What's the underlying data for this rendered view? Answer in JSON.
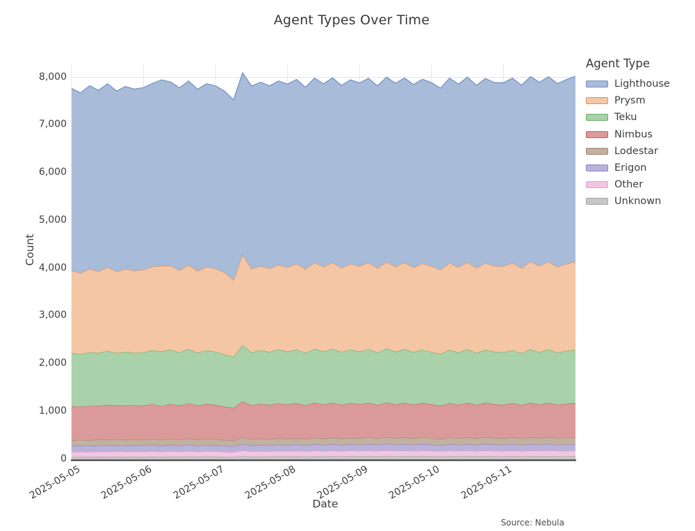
{
  "title": "Agent Types Over Time",
  "source_note": "Source: Nebula",
  "legend": {
    "title": "Agent Type"
  },
  "chart_data": {
    "type": "area",
    "stacked": true,
    "title": "Agent Types Over Time",
    "xlabel": "Date",
    "ylabel": "Count",
    "legend_title": "Agent Type",
    "legend_position": "right-outside",
    "grid": true,
    "x_start": "2025-05-05",
    "x_end": "2025-05-12",
    "points_per_day": 8,
    "x_tick_labels": [
      "2025-05-05",
      "2025-05-06",
      "2025-05-07",
      "2025-05-08",
      "2025-05-09",
      "2025-05-10",
      "2025-05-11"
    ],
    "y_ticks": [
      0,
      1000,
      2000,
      3000,
      4000,
      5000,
      6000,
      7000,
      8000
    ],
    "ylim": [
      0,
      8265
    ],
    "colors": {
      "gridline": "#e4e4e4",
      "axis_line": "#4f4f4f",
      "text": "#3d3d3d"
    },
    "stack_order_bottom_to_top": [
      "Unknown",
      "Other",
      "Erigon",
      "Lodestar",
      "Nimbus",
      "Teku",
      "Prysm",
      "Lighthouse"
    ],
    "series": [
      {
        "name": "Lighthouse",
        "fill": "#a8bbd8",
        "line": "#6f8fbf",
        "values": [
          3822,
          3780,
          3836,
          3798,
          3846,
          3790,
          3828,
          3806,
          3818,
          3840,
          3900,
          3852,
          3824,
          3856,
          3810,
          3838,
          3830,
          3800,
          3776,
          3810,
          3836,
          3852,
          3834,
          3856,
          3840,
          3862,
          3816,
          3868,
          3838,
          3870,
          3826,
          3858,
          3844,
          3866,
          3822,
          3872,
          3846,
          3868,
          3832,
          3860,
          3848,
          3812,
          3874,
          3840,
          3878,
          3830,
          3866,
          3846,
          3850,
          3872,
          3836,
          3880,
          3852,
          3876,
          3842,
          3864,
          3886
        ]
      },
      {
        "name": "Prysm",
        "fill": "#f5c6a4",
        "line": "#e28e5e",
        "values": [
          1726,
          1698,
          1744,
          1712,
          1752,
          1706,
          1736,
          1718,
          1730,
          1752,
          1790,
          1758,
          1724,
          1762,
          1716,
          1748,
          1742,
          1720,
          1608,
          1900,
          1748,
          1764,
          1746,
          1772,
          1768,
          1796,
          1752,
          1806,
          1772,
          1810,
          1762,
          1794,
          1786,
          1812,
          1768,
          1818,
          1784,
          1814,
          1776,
          1806,
          1798,
          1760,
          1824,
          1786,
          1830,
          1778,
          1820,
          1796,
          1804,
          1830,
          1782,
          1836,
          1806,
          1840,
          1796,
          1824,
          1852
        ]
      },
      {
        "name": "Teku",
        "fill": "#a9d2ab",
        "line": "#67aa69",
        "values": [
          1118,
          1096,
          1128,
          1104,
          1134,
          1100,
          1122,
          1108,
          1114,
          1130,
          1150,
          1136,
          1110,
          1138,
          1106,
          1126,
          1112,
          1094,
          1068,
          1178,
          1108,
          1124,
          1110,
          1130,
          1109,
          1126,
          1100,
          1132,
          1112,
          1128,
          1104,
          1122,
          1106,
          1120,
          1098,
          1126,
          1102,
          1122,
          1100,
          1118,
          1096,
          1082,
          1112,
          1094,
          1116,
          1090,
          1110,
          1098,
          1094,
          1110,
          1088,
          1118,
          1096,
          1114,
          1092,
          1106,
          1112
        ]
      },
      {
        "name": "Nimbus",
        "fill": "#db9a9a",
        "line": "#c66060",
        "values": [
          712,
          698,
          722,
          705,
          728,
          702,
          718,
          708,
          715,
          726,
          704,
          730,
          710,
          733,
          708,
          724,
          718,
          700,
          688,
          752,
          712,
          726,
          715,
          729,
          716,
          728,
          706,
          732,
          714,
          730,
          710,
          726,
          712,
          724,
          702,
          728,
          708,
          726,
          706,
          722,
          708,
          696,
          720,
          704,
          724,
          700,
          718,
          706,
          704,
          716,
          698,
          722,
          702,
          720,
          700,
          714,
          718
        ]
      },
      {
        "name": "Lodestar",
        "fill": "#c2b0a0",
        "line": "#a18a70",
        "values": [
          118,
          124,
          116,
          126,
          120,
          128,
          122,
          127,
          123,
          129,
          121,
          130,
          124,
          131,
          125,
          132,
          126,
          121,
          118,
          138,
          127,
          131,
          128,
          133,
          130,
          135,
          128,
          136,
          131,
          138,
          132,
          137,
          134,
          140,
          133,
          141,
          135,
          142,
          136,
          141,
          137,
          132,
          142,
          136,
          143,
          138,
          144,
          139,
          138,
          143,
          136,
          144,
          139,
          145,
          140,
          142,
          144
        ]
      },
      {
        "name": "Erigon",
        "fill": "#bab2d9",
        "line": "#8d82c6",
        "values": [
          128,
          124,
          131,
          126,
          133,
          127,
          130,
          125,
          129,
          134,
          127,
          132,
          128,
          135,
          129,
          133,
          130,
          126,
          122,
          139,
          128,
          132,
          130,
          134,
          131,
          135,
          129,
          136,
          130,
          137,
          131,
          135,
          132,
          137,
          130,
          138,
          132,
          136,
          130,
          135,
          131,
          127,
          135,
          130,
          136,
          129,
          137,
          132,
          130,
          135,
          128,
          136,
          131,
          137,
          129,
          133,
          134
        ]
      },
      {
        "name": "Other",
        "fill": "#f2c5e2",
        "line": "#e3a0d0",
        "values": [
          104,
          108,
          102,
          110,
          106,
          112,
          105,
          109,
          107,
          111,
          104,
          113,
          108,
          114,
          106,
          110,
          109,
          103,
          98,
          118,
          107,
          112,
          109,
          114,
          110,
          115,
          108,
          116,
          111,
          117,
          109,
          115,
          112,
          118,
          110,
          119,
          113,
          117,
          111,
          116,
          113,
          108,
          117,
          112,
          118,
          110,
          119,
          114,
          112,
          117,
          110,
          118,
          113,
          119,
          111,
          115,
          117
        ]
      },
      {
        "name": "Unknown",
        "fill": "#c7c7c7",
        "line": "#a3a3a3",
        "values": [
          44,
          48,
          46,
          50,
          47,
          52,
          49,
          53,
          50,
          54,
          51,
          55,
          52,
          56,
          53,
          57,
          54,
          50,
          48,
          62,
          55,
          57,
          54,
          58,
          56,
          59,
          55,
          60,
          57,
          61,
          58,
          62,
          59,
          63,
          60,
          64,
          58,
          62,
          59,
          63,
          60,
          57,
          61,
          58,
          62,
          59,
          63,
          60,
          57,
          61,
          58,
          62,
          59,
          63,
          60,
          58,
          61
        ]
      }
    ]
  }
}
